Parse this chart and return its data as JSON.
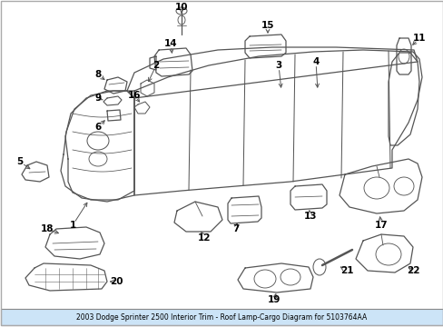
{
  "title": "2003 Dodge Sprinter 2500 Interior Trim - Roof Lamp-Cargo Diagram for 5103764AA",
  "bg_color": "#ffffff",
  "line_color": "#555555",
  "title_bg": "#cce4f7",
  "title_color": "#000000",
  "fig_w": 4.89,
  "fig_h": 3.6,
  "dpi": 100
}
